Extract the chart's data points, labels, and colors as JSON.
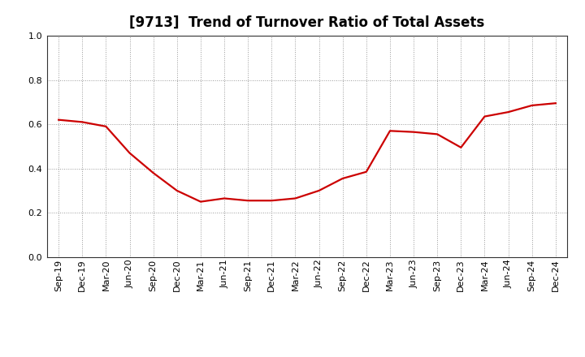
{
  "title": "[9713]  Trend of Turnover Ratio of Total Assets",
  "x_labels": [
    "Sep-19",
    "Dec-19",
    "Mar-20",
    "Jun-20",
    "Sep-20",
    "Dec-20",
    "Mar-21",
    "Jun-21",
    "Sep-21",
    "Dec-21",
    "Mar-22",
    "Jun-22",
    "Sep-22",
    "Dec-22",
    "Mar-23",
    "Jun-23",
    "Sep-23",
    "Dec-23",
    "Mar-24",
    "Jun-24",
    "Sep-24",
    "Dec-24"
  ],
  "y_values": [
    0.62,
    0.61,
    0.59,
    0.47,
    0.38,
    0.3,
    0.25,
    0.265,
    0.255,
    0.255,
    0.265,
    0.3,
    0.355,
    0.385,
    0.57,
    0.565,
    0.555,
    0.495,
    0.635,
    0.655,
    0.685,
    0.695
  ],
  "line_color": "#cc0000",
  "line_width": 1.6,
  "ylim": [
    0.0,
    1.0
  ],
  "yticks": [
    0.0,
    0.2,
    0.4,
    0.6,
    0.8,
    1.0
  ],
  "grid_color": "#999999",
  "background_color": "#ffffff",
  "title_fontsize": 12,
  "tick_fontsize": 8,
  "spine_color": "#333333"
}
